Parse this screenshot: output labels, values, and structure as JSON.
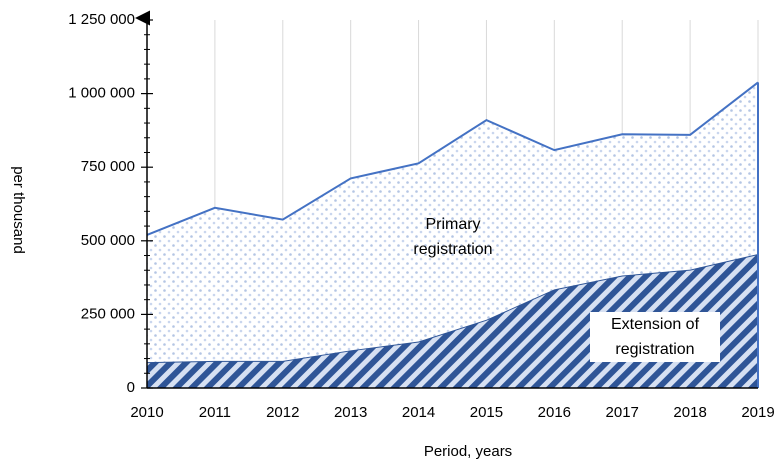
{
  "chart_data": {
    "type": "area",
    "stacked": true,
    "x_label": "Period, years",
    "y_label": "per thousand",
    "categories": [
      "2010",
      "2011",
      "2012",
      "2013",
      "2014",
      "2015",
      "2016",
      "2017",
      "2018",
      "2019"
    ],
    "series": [
      {
        "name": "Extension of registration",
        "color": "#2f5597",
        "values": [
          88000,
          92000,
          92000,
          128000,
          158000,
          232000,
          335000,
          382000,
          402000,
          455000
        ]
      },
      {
        "name": "Primary registration",
        "color": "#4472c4",
        "values": [
          432000,
          520000,
          480000,
          584000,
          605000,
          678000,
          473000,
          480000,
          458000,
          583000
        ]
      }
    ],
    "ylim": [
      0,
      1250000
    ],
    "yticks": [
      0,
      {
        "value": 250000,
        "label": "250 000"
      },
      {
        "value": 500000,
        "label": "500 000"
      },
      {
        "value": 750000,
        "label": "750 000"
      },
      {
        "value": 1000000,
        "label": "1 000 000"
      },
      {
        "value": 1250000,
        "label": "1 250 000"
      }
    ],
    "grid": true
  }
}
